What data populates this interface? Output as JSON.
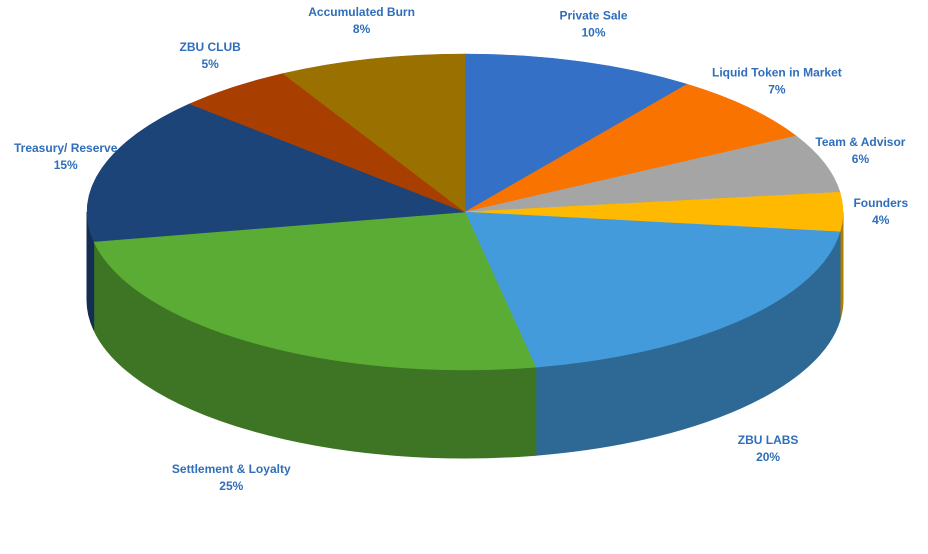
{
  "chart_data": {
    "type": "pie",
    "categories": [
      "Private Sale",
      "Liquid Token in Market",
      "Team & Advisor",
      "Founders",
      "ZBU LABS",
      "Settlement & Loyalty",
      "Treasury/ Reserve",
      "ZBU CLUB",
      "Accumulated Burn"
    ],
    "values": [
      10,
      7,
      6,
      4,
      20,
      25,
      15,
      5,
      8
    ],
    "value_labels": [
      "10%",
      "7%",
      "6%",
      "4%",
      "20%",
      "25%",
      "15%",
      "5%",
      "8%"
    ],
    "colors": [
      "#3470c6",
      "#f97300",
      "#a5a5a5",
      "#ffb900",
      "#449bdb",
      "#5aac35",
      "#1c4479",
      "#a83f00",
      "#9a7000"
    ]
  }
}
